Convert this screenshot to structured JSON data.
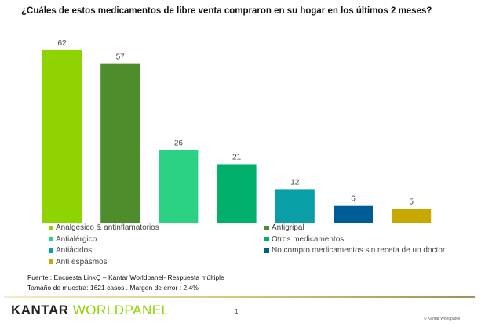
{
  "chart_data": {
    "type": "bar",
    "title": "¿Cuáles de estos medicamentos de libre venta compraron en su hogar en los últimos 2 meses?",
    "categories": [
      "Analgésico & antinflamatorios",
      "Antigripal",
      "Antialérgico",
      "Otros medicamentos",
      "Antiácidos",
      "No compro medicamentos sin receta de un doctor",
      "Anti espasmos"
    ],
    "values": [
      62,
      57,
      26,
      21,
      12,
      6,
      5
    ],
    "colors": [
      "#8fd400",
      "#4e8d2c",
      "#2bd283",
      "#00b06a",
      "#0a9ea6",
      "#005c94",
      "#c9a800"
    ],
    "ylim": [
      0,
      62
    ],
    "grid": false,
    "legend": "bottom"
  },
  "source": {
    "line1": "Fuente : Encuesta LinkQ – Kantar Worldpanel- Respuesta múltiple",
    "line2": "Tamaño de muestra: 1621 casos . Margen de error : 2.4%"
  },
  "footer": {
    "logo_a": "KANTAR",
    "logo_b": "WORLDPANEL",
    "page": "1",
    "copyright": "© Kantar Worldpanel"
  }
}
